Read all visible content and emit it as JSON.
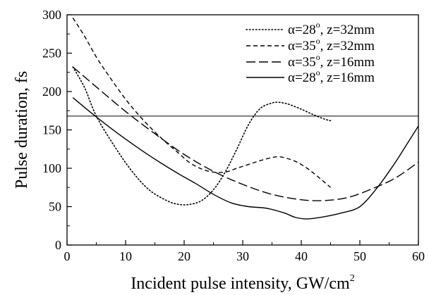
{
  "chart_data": {
    "type": "line",
    "xlabel": "Incident pulse  intensity, GW/cm",
    "xlabel_sup": "2",
    "ylabel": "Pulse duration, fs",
    "xlim": [
      0,
      60
    ],
    "ylim": [
      0,
      300
    ],
    "xticks": [
      0,
      10,
      20,
      30,
      40,
      50,
      60
    ],
    "yticks": [
      0,
      50,
      100,
      150,
      200,
      250,
      300
    ],
    "grid": false,
    "legend_position": "top-right",
    "reference_line": {
      "y": 168
    },
    "series": [
      {
        "name": "α=28°, z=32mm",
        "label": {
          "alpha": "α=28",
          "deg": "o",
          "rest": ", z=32mm"
        },
        "dash": "dotted",
        "x": [
          1,
          3,
          5,
          8,
          11,
          14,
          17,
          19,
          21,
          23,
          25,
          27,
          29,
          31,
          33,
          35,
          36,
          37,
          38,
          40,
          42,
          44,
          45
        ],
        "y": [
          232,
          205,
          168,
          130,
          97,
          72,
          58,
          53,
          53,
          58,
          72,
          95,
          125,
          157,
          178,
          185,
          186,
          185,
          183,
          177,
          170,
          164,
          162
        ]
      },
      {
        "name": "α=35°, z=32mm",
        "label": {
          "alpha": "α=35",
          "deg": "o",
          "rest": ", z=32mm"
        },
        "dash": "short-dash",
        "x": [
          1,
          3,
          5,
          7,
          10,
          13,
          16,
          19,
          21,
          23,
          25,
          27,
          29,
          31,
          33,
          35,
          36,
          37,
          39,
          41,
          43,
          45
        ],
        "y": [
          296,
          272,
          245,
          222,
          190,
          163,
          140,
          120,
          107,
          99,
          95,
          95,
          100,
          105,
          110,
          114,
          115,
          114,
          109,
          100,
          88,
          75
        ]
      },
      {
        "name": "α=35°, z=16mm",
        "label": {
          "alpha": "α=35",
          "deg": "o",
          "rest": ", z=16mm"
        },
        "dash": "long-dash",
        "x": [
          1,
          5,
          10,
          15,
          20,
          25,
          30,
          35,
          40,
          44,
          48,
          52,
          56,
          60
        ],
        "y": [
          232,
          206,
          174,
          145,
          118,
          96,
          79,
          66,
          59,
          58,
          62,
          73,
          87,
          108
        ]
      },
      {
        "name": "α=28°, z=16mm",
        "label": {
          "alpha": "α=28",
          "deg": "o",
          "rest": ", z=16mm"
        },
        "dash": "solid",
        "x": [
          1,
          4,
          7,
          10,
          13,
          16,
          19,
          22,
          25,
          28,
          31,
          34,
          37,
          39,
          41,
          44,
          47,
          50,
          53,
          56,
          58,
          60
        ],
        "y": [
          192,
          173,
          155,
          138,
          122,
          107,
          93,
          80,
          66,
          55,
          50,
          48,
          42,
          36,
          34,
          37,
          42,
          50,
          75,
          107,
          131,
          155
        ]
      }
    ]
  }
}
